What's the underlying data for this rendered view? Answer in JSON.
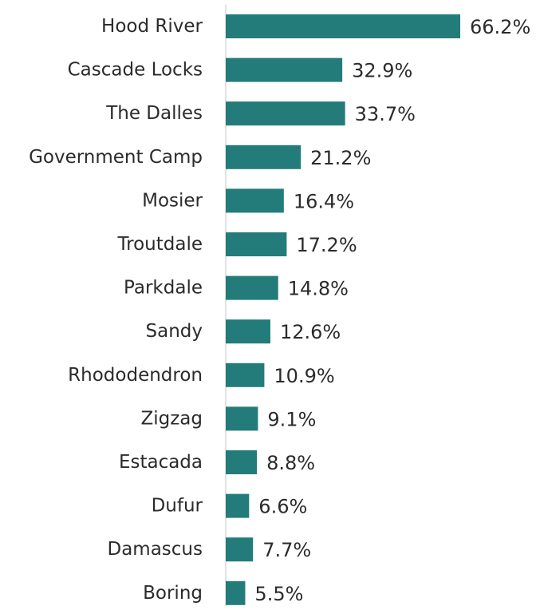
{
  "chart_data": {
    "type": "bar",
    "orientation": "horizontal",
    "categories": [
      "Hood River",
      "Cascade Locks",
      "The Dalles",
      "Government Camp",
      "Mosier",
      "Troutdale",
      "Parkdale",
      "Sandy",
      "Rhododendron",
      "Zigzag",
      "Estacada",
      "Dufur",
      "Damascus",
      "Boring"
    ],
    "values": [
      66.2,
      32.9,
      33.7,
      21.2,
      16.4,
      17.2,
      14.8,
      12.6,
      10.9,
      9.1,
      8.8,
      6.6,
      7.7,
      5.5
    ],
    "value_labels": [
      "66.2%",
      "32.9%",
      "33.7%",
      "21.2%",
      "16.4%",
      "17.2%",
      "14.8%",
      "12.6%",
      "10.9%",
      "9.1%",
      "8.8%",
      "6.6%",
      "7.7%",
      "5.5%"
    ],
    "value_unit": "%",
    "title": "",
    "xlabel": "",
    "ylabel": "",
    "xlim": [
      0,
      70
    ],
    "grid": false,
    "legend": "none",
    "bar_color": "#237c7a",
    "axis_color": "#d9d9d9",
    "text_color": "#2b2b2b"
  }
}
